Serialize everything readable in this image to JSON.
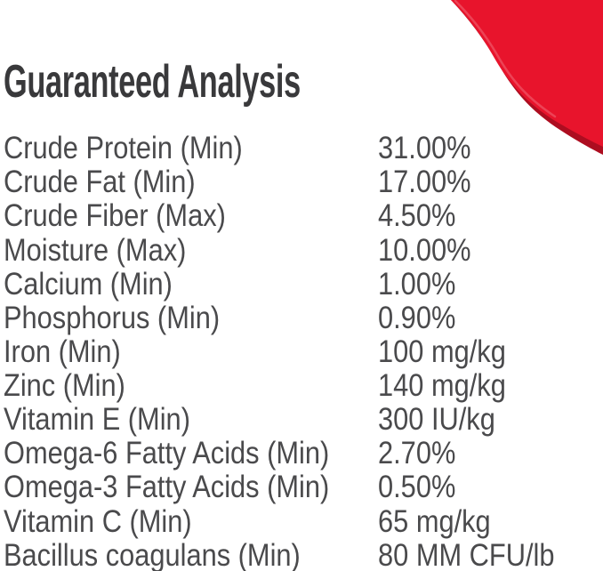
{
  "header": {
    "title": "Guaranteed Analysis"
  },
  "colors": {
    "background": "#ffffff",
    "title_text": "#39393b",
    "body_text": "#4a4a4c",
    "swoosh_red": "#e8142c",
    "swoosh_red_dark": "#ad0d20"
  },
  "decoration": {
    "swoosh": "red-wave-top-right-corner"
  },
  "analysis": {
    "rows": [
      {
        "label": "Crude Protein (Min)",
        "value": "31.00%"
      },
      {
        "label": "Crude Fat (Min)",
        "value": "17.00%"
      },
      {
        "label": "Crude Fiber (Max)",
        "value": "4.50%"
      },
      {
        "label": "Moisture (Max)",
        "value": "10.00%"
      },
      {
        "label": "Calcium (Min)",
        "value": "1.00%"
      },
      {
        "label": "Phosphorus (Min)",
        "value": "0.90%"
      },
      {
        "label": "Iron (Min)",
        "value": "100 mg/kg"
      },
      {
        "label": "Zinc (Min)",
        "value": "140 mg/kg"
      },
      {
        "label": "Vitamin E (Min)",
        "value": "300 IU/kg"
      },
      {
        "label": "Omega-6 Fatty Acids (Min)",
        "value": "2.70%"
      },
      {
        "label": "Omega-3 Fatty Acids (Min)",
        "value": "0.50%"
      },
      {
        "label": "Vitamin C (Min)",
        "value": "65 mg/kg"
      },
      {
        "label": "Bacillus coagulans (Min)",
        "value": "80 MM CFU/lb"
      }
    ]
  }
}
